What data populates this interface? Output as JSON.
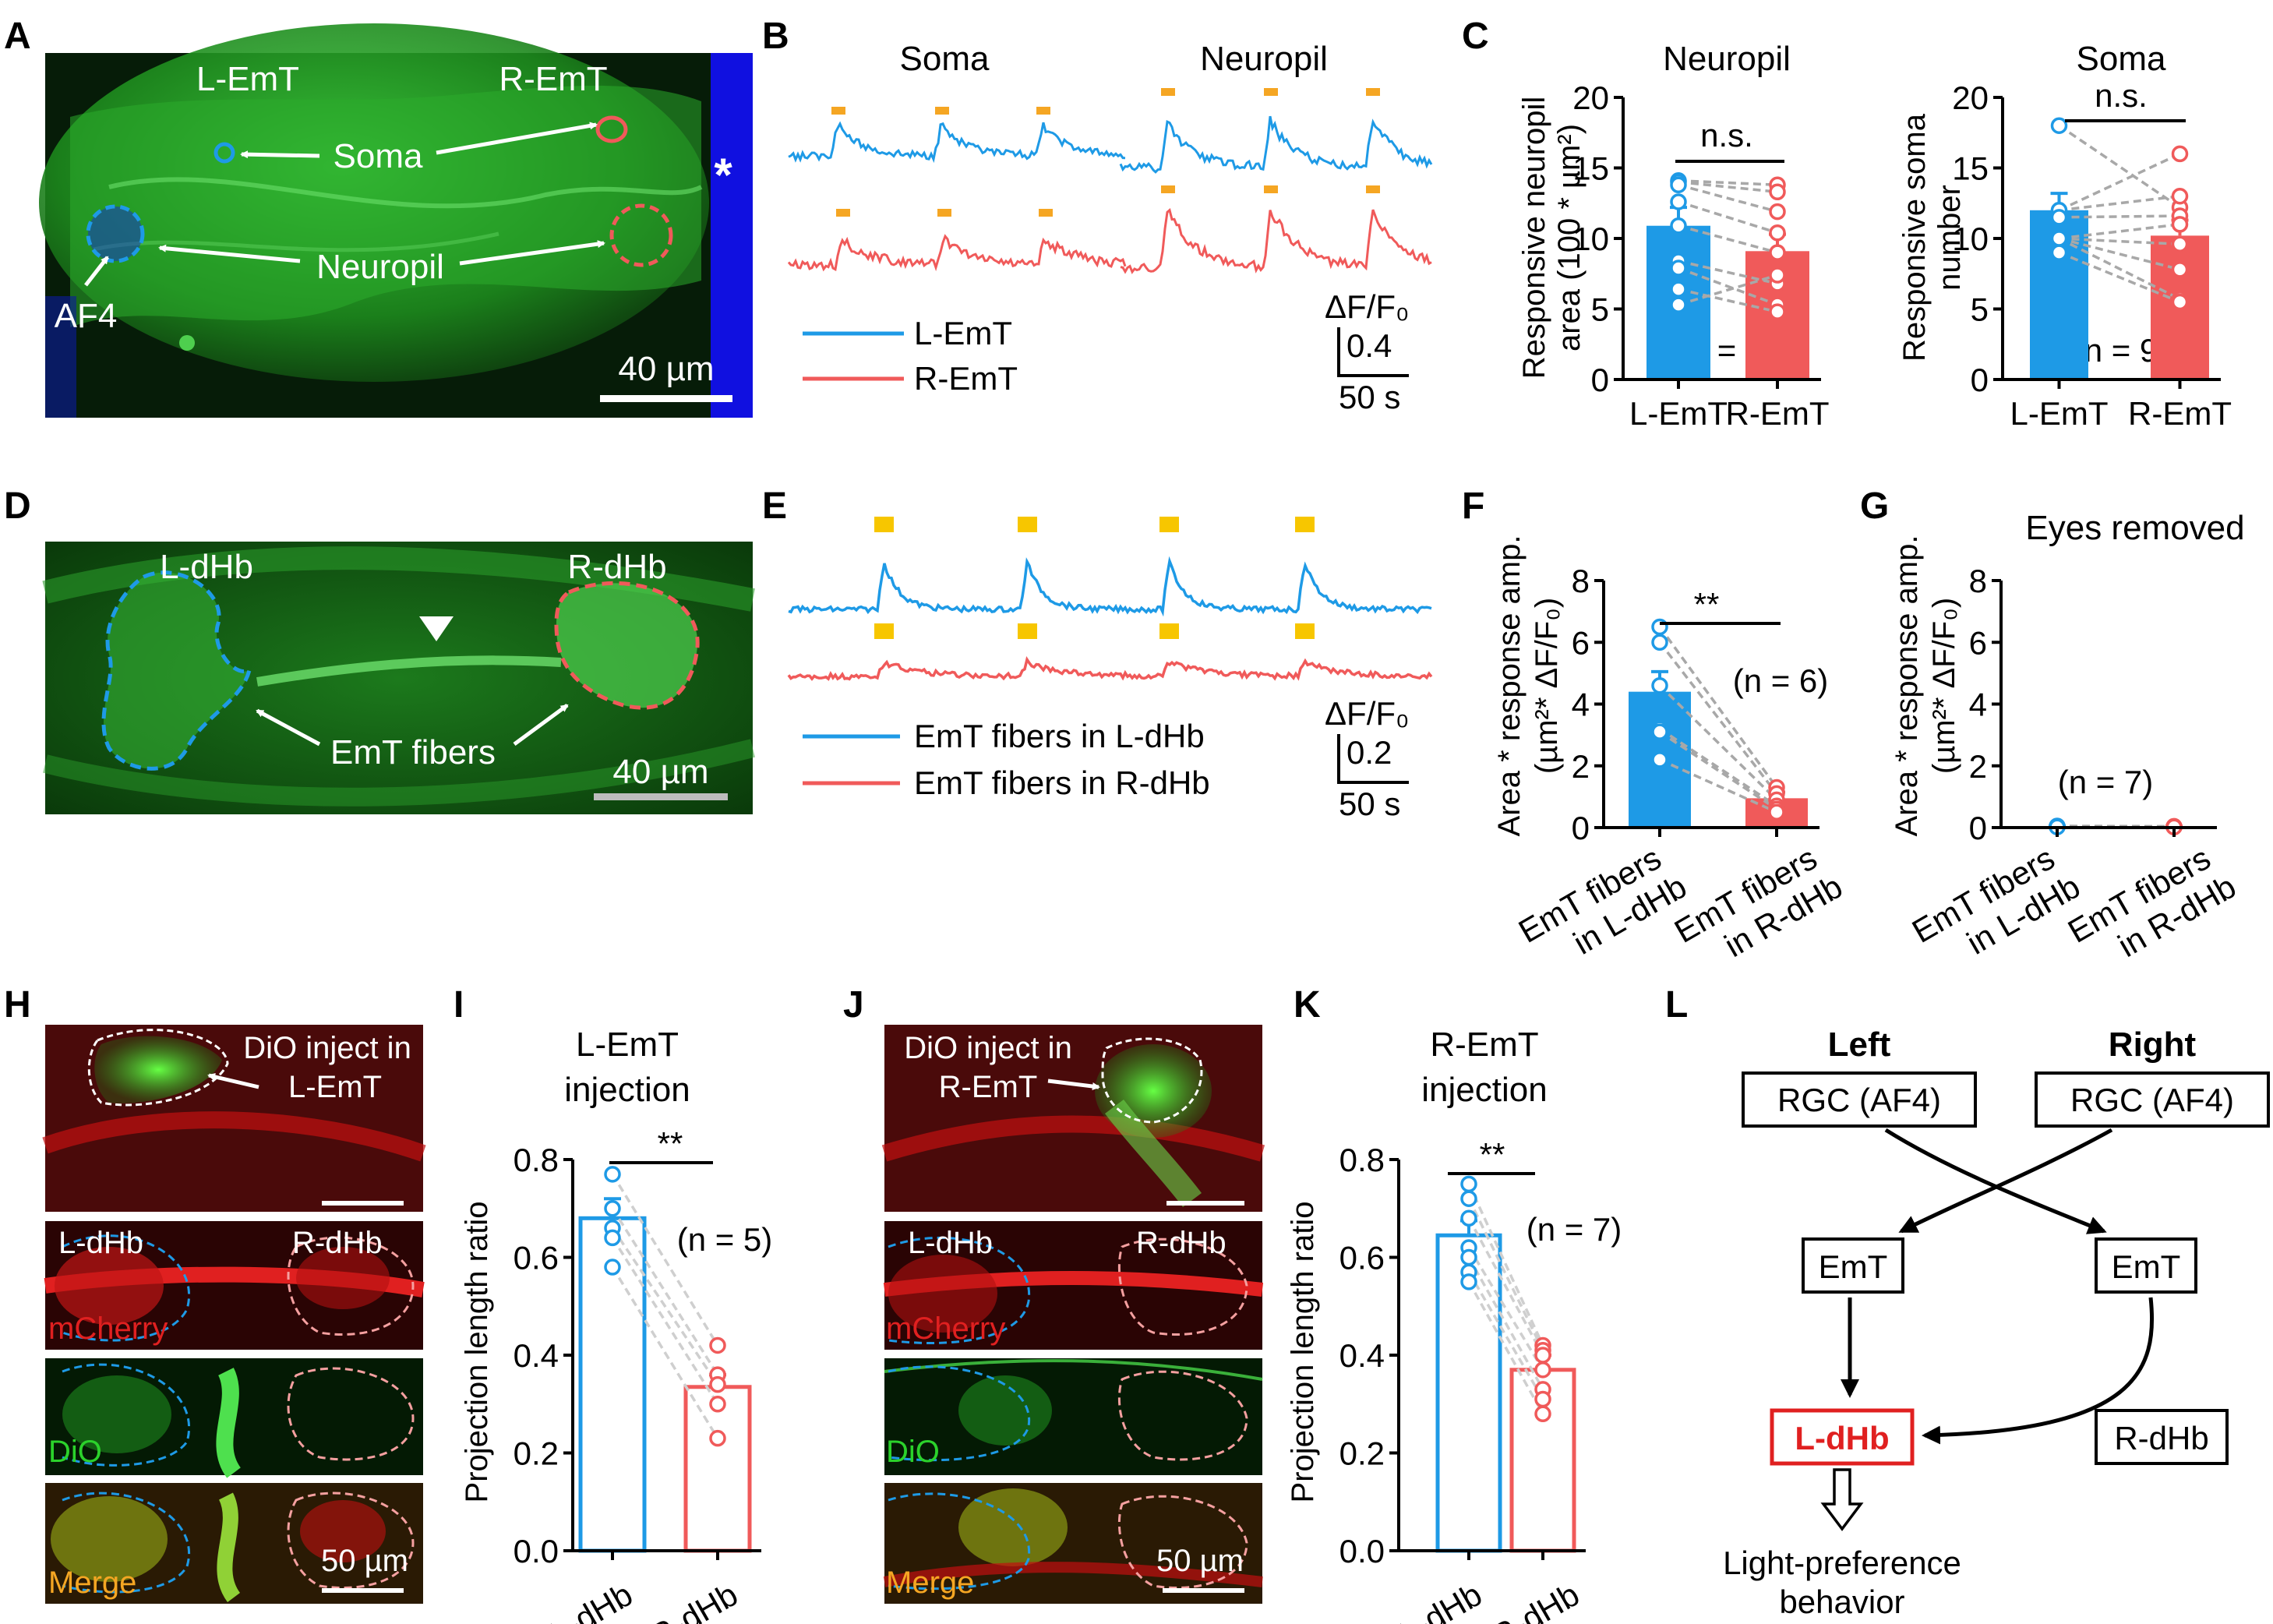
{
  "colors": {
    "left": "#1e9ae6",
    "right": "#f05a5a",
    "fiber_green": "#3fcf3f",
    "stim_orange": "#f5a623",
    "stim_yellow": "#f7c600",
    "scale_grey": "#bdbdbd",
    "pair_grey": "#a8a8a8",
    "highlight_red": "#e02020"
  },
  "panel_labels": {
    "A": "A",
    "B": "B",
    "C": "C",
    "D": "D",
    "E": "E",
    "F": "F",
    "G": "G",
    "H": "H",
    "I": "I",
    "J": "J",
    "K": "K",
    "L": "L"
  },
  "panel_a": {
    "l_emt": "L-EmT",
    "r_emt": "R-EmT",
    "soma": "Soma",
    "neuropil": "Neuropil",
    "af4": "AF4",
    "asterisk": "*",
    "scale": "40 µm"
  },
  "panel_b": {
    "title_soma": "Soma",
    "title_neuropil": "Neuropil",
    "legend_left": "L-EmT",
    "legend_right": "R-EmT",
    "scale_unit": "ΔF/F₀",
    "scale_y": "0.4",
    "scale_x": "50 s"
  },
  "panel_c": {
    "neuropil": {
      "title": "Neuropil",
      "ylabel_1": "Responsive neuropil",
      "ylabel_2": "area (100 * µm²)",
      "n": "(n = 9)",
      "sig": "n.s.",
      "categories": [
        "L-EmT",
        "R-EmT"
      ],
      "yticks": [
        "0",
        "5",
        "10",
        "15",
        "20"
      ]
    },
    "soma": {
      "title": "Soma",
      "ylabel_1": "Responsive soma",
      "ylabel_2": "number",
      "n": "(n = 9)",
      "sig": "n.s.",
      "categories": [
        "L-EmT",
        "R-EmT"
      ],
      "yticks": [
        "0",
        "5",
        "10",
        "15",
        "20"
      ]
    }
  },
  "panel_d": {
    "l_dhb": "L-dHb",
    "r_dhb": "R-dHb",
    "fibers": "EmT fibers",
    "scale": "40 µm"
  },
  "panel_e": {
    "legend_left": "EmT fibers in L-dHb",
    "legend_right": "EmT fibers in R-dHb",
    "scale_unit": "ΔF/F₀",
    "scale_y": "0.2",
    "scale_x": "50 s"
  },
  "panel_f": {
    "ylabel_1": "Area * response amp.",
    "ylabel_2": "(µm²* ΔF/F₀)",
    "n": "(n = 6)",
    "sig": "**",
    "cat_l_1": "EmT fibers",
    "cat_l_2": "in L-dHb",
    "cat_r_1": "EmT fibers",
    "cat_r_2": "in R-dHb",
    "yticks": [
      "0",
      "2",
      "4",
      "6",
      "8"
    ]
  },
  "panel_g": {
    "title": "Eyes removed",
    "ylabel_1": "Area * response amp.",
    "ylabel_2": "(µm²* ΔF/F₀)",
    "n": "(n = 7)",
    "cat_l_1": "EmT fibers",
    "cat_l_2": "in L-dHb",
    "cat_r_1": "EmT fibers",
    "cat_r_2": "in R-dHb",
    "yticks": [
      "0",
      "2",
      "4",
      "6",
      "8"
    ]
  },
  "panel_h": {
    "inject_1": "DiO inject in",
    "inject_2": "L-EmT",
    "l_dhb": "L-dHb",
    "r_dhb": "R-dHb",
    "mcherry": "mCherry",
    "dio": "DiO",
    "merge": "Merge",
    "scale": "50 µm"
  },
  "panel_i": {
    "title_1": "L-EmT",
    "title_2": "injection",
    "ylabel": "Projection length ratio",
    "n": "(n = 5)",
    "sig": "**",
    "categories": [
      "L-dHb",
      "R-dHb"
    ],
    "yticks": [
      "0.0",
      "0.2",
      "0.4",
      "0.6",
      "0.8"
    ]
  },
  "panel_j": {
    "inject_1": "DiO inject in",
    "inject_2": "R-EmT",
    "l_dhb": "L-dHb",
    "r_dhb": "R-dHb",
    "mcherry": "mCherry",
    "dio": "DiO",
    "merge": "Merge",
    "scale": "50 µm"
  },
  "panel_k": {
    "title_1": "R-EmT",
    "title_2": "injection",
    "ylabel": "Projection length ratio",
    "n": "(n = 7)",
    "sig": "**",
    "categories": [
      "L-dHb",
      "R-dHb"
    ],
    "yticks": [
      "0.0",
      "0.2",
      "0.4",
      "0.6",
      "0.8"
    ]
  },
  "panel_l": {
    "left": "Left",
    "right": "Right",
    "rgc_left": "RGC (AF4)",
    "rgc_right": "RGC (AF4)",
    "emt_left": "EmT",
    "emt_right": "EmT",
    "l_dhb": "L-dHb",
    "r_dhb": "R-dHb",
    "behavior_1": "Light-preference",
    "behavior_2": "behavior"
  },
  "chart_data": [
    {
      "panel": "C-neuropil",
      "type": "bar",
      "categories": [
        "L-EmT",
        "R-EmT"
      ],
      "values": [
        10.9,
        9.1
      ],
      "sem": [
        1.3,
        1.2
      ],
      "ylim": [
        0,
        20
      ],
      "paired_points": [
        [
          14.1,
          13.8
        ],
        [
          14.0,
          13.3
        ],
        [
          13.8,
          11.9
        ],
        [
          12.6,
          10.4
        ],
        [
          10.9,
          9.0
        ],
        [
          8.4,
          6.8
        ],
        [
          7.9,
          5.3
        ],
        [
          6.4,
          4.8
        ],
        [
          5.3,
          7.4
        ]
      ]
    },
    {
      "panel": "C-soma",
      "type": "bar",
      "categories": [
        "L-EmT",
        "R-EmT"
      ],
      "values": [
        12,
        10.2
      ],
      "sem": [
        1.2,
        1.1
      ],
      "ylim": [
        0,
        20
      ],
      "paired_points": [
        [
          18,
          12.2
        ],
        [
          12,
          16
        ],
        [
          12,
          13
        ],
        [
          11.5,
          11.6
        ],
        [
          10,
          11
        ],
        [
          10,
          9.6
        ],
        [
          10,
          7.8
        ],
        [
          10,
          5.7
        ],
        [
          9,
          5.5
        ]
      ]
    },
    {
      "panel": "F",
      "type": "bar",
      "categories": [
        "EmT fibers in L-dHb",
        "EmT fibers in R-dHb"
      ],
      "values": [
        4.4,
        0.95
      ],
      "sem": [
        0.65,
        0.2
      ],
      "ylim": [
        0,
        8
      ],
      "paired_points": [
        [
          6.5,
          1.3
        ],
        [
          6.0,
          1.1
        ],
        [
          4.6,
          0.9
        ],
        [
          3.2,
          0.7
        ],
        [
          3.1,
          0.6
        ],
        [
          2.2,
          0.5
        ]
      ]
    },
    {
      "panel": "G",
      "type": "bar",
      "categories": [
        "EmT fibers in L-dHb",
        "EmT fibers in R-dHb"
      ],
      "values": [
        0.04,
        0.03
      ],
      "sem": [
        0.01,
        0.01
      ],
      "ylim": [
        0,
        8
      ],
      "paired_points": [
        [
          0.05,
          0.04
        ],
        [
          0.04,
          0.03
        ],
        [
          0.04,
          0.03
        ],
        [
          0.03,
          0.03
        ],
        [
          0.03,
          0.02
        ],
        [
          0.03,
          0.02
        ],
        [
          0.02,
          0.02
        ]
      ]
    },
    {
      "panel": "I",
      "type": "bar",
      "categories": [
        "L-dHb",
        "R-dHb"
      ],
      "values": [
        0.68,
        0.335
      ],
      "sem": [
        0.04,
        0.025
      ],
      "ylim": [
        0,
        0.8
      ],
      "paired_points": [
        [
          0.77,
          0.42
        ],
        [
          0.7,
          0.36
        ],
        [
          0.66,
          0.34
        ],
        [
          0.64,
          0.3
        ],
        [
          0.58,
          0.23
        ]
      ]
    },
    {
      "panel": "K",
      "type": "bar",
      "categories": [
        "L-dHb",
        "R-dHb"
      ],
      "values": [
        0.645,
        0.37
      ],
      "sem": [
        0.03,
        0.03
      ],
      "ylim": [
        0,
        0.8
      ],
      "paired_points": [
        [
          0.75,
          0.42
        ],
        [
          0.72,
          0.41
        ],
        [
          0.68,
          0.4
        ],
        [
          0.62,
          0.37
        ],
        [
          0.6,
          0.33
        ],
        [
          0.57,
          0.31
        ],
        [
          0.55,
          0.28
        ]
      ]
    }
  ]
}
